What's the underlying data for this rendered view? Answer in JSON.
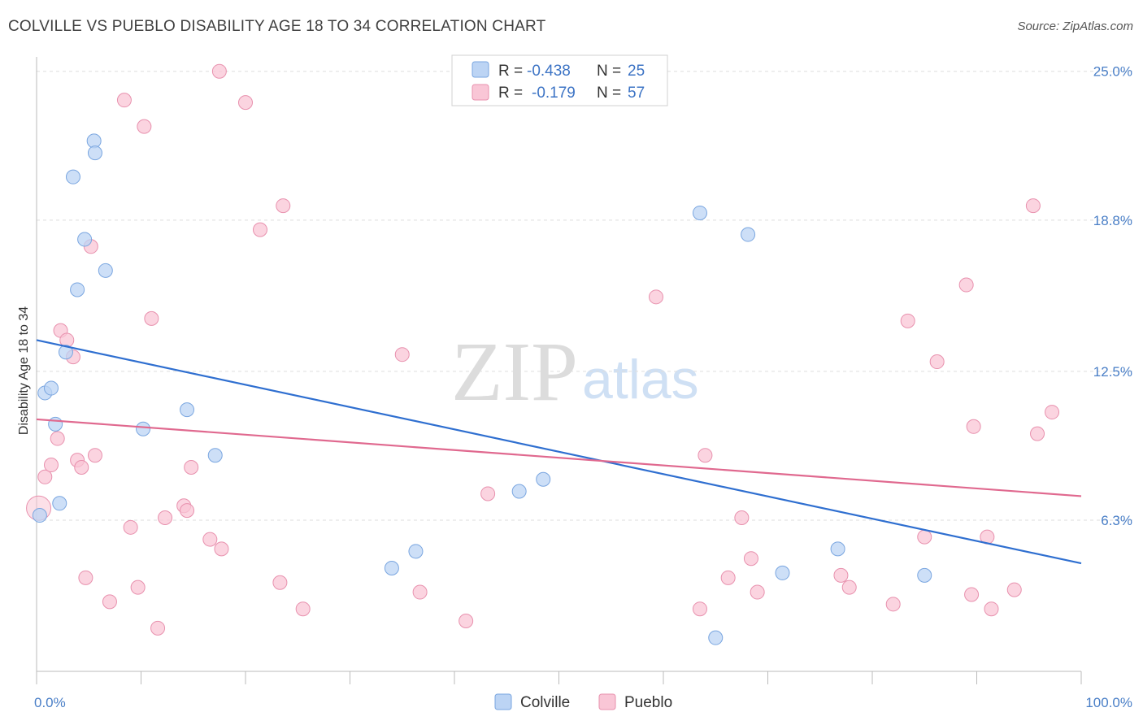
{
  "header": {
    "title": "COLVILLE VS PUEBLO DISABILITY AGE 18 TO 34 CORRELATION CHART",
    "source": "Source: ZipAtlas.com"
  },
  "watermark": {
    "zip": "ZIP",
    "atlas": "atlas"
  },
  "colors": {
    "colville_fill": "#bcd4f4",
    "colville_stroke": "#7aa6e0",
    "colville_line": "#2f6fd0",
    "pueblo_fill": "#f9c6d6",
    "pueblo_stroke": "#e891ae",
    "pueblo_line": "#e0698f",
    "tick_label": "#4a7fc7",
    "grid": "#dddddd"
  },
  "legend": {
    "rows": [
      {
        "r_label": "R =",
        "r_value": "-0.438",
        "n_label": "N =",
        "n_value": "25"
      },
      {
        "r_label": "R =",
        "r_value": "-0.179",
        "n_label": "N =",
        "n_value": "57"
      }
    ]
  },
  "chart_data": {
    "type": "scatter",
    "title": "COLVILLE VS PUEBLO DISABILITY AGE 18 TO 34 CORRELATION CHART",
    "xlabel": "",
    "ylabel": "Disability Age 18 to 34",
    "xlim": [
      0,
      100
    ],
    "ylim": [
      0,
      25.6
    ],
    "x_ticks": [
      "0.0%",
      "100.0%"
    ],
    "y_ticks": [
      {
        "value": 6.3,
        "label": "6.3%"
      },
      {
        "value": 12.5,
        "label": "12.5%"
      },
      {
        "value": 18.8,
        "label": "18.8%"
      },
      {
        "value": 25.0,
        "label": "25.0%"
      }
    ],
    "grid": "horizontal dashed",
    "legend_position": "top-center",
    "series": [
      {
        "name": "Colville",
        "r": -0.438,
        "n": 25,
        "trend": {
          "x": [
            0,
            100
          ],
          "y": [
            13.8,
            4.5
          ]
        },
        "points": [
          {
            "x": 0.3,
            "y": 6.5
          },
          {
            "x": 0.8,
            "y": 11.6
          },
          {
            "x": 1.4,
            "y": 11.8
          },
          {
            "x": 1.8,
            "y": 10.3
          },
          {
            "x": 2.2,
            "y": 7.0
          },
          {
            "x": 2.8,
            "y": 13.3
          },
          {
            "x": 3.5,
            "y": 20.6
          },
          {
            "x": 3.9,
            "y": 15.9
          },
          {
            "x": 4.6,
            "y": 18.0
          },
          {
            "x": 5.5,
            "y": 22.1
          },
          {
            "x": 5.6,
            "y": 21.6
          },
          {
            "x": 6.6,
            "y": 16.7
          },
          {
            "x": 10.2,
            "y": 10.1
          },
          {
            "x": 14.4,
            "y": 10.9
          },
          {
            "x": 17.1,
            "y": 9.0
          },
          {
            "x": 34.0,
            "y": 4.3
          },
          {
            "x": 36.3,
            "y": 5.0
          },
          {
            "x": 46.2,
            "y": 7.5
          },
          {
            "x": 48.5,
            "y": 8.0
          },
          {
            "x": 63.5,
            "y": 19.1
          },
          {
            "x": 65.0,
            "y": 1.4
          },
          {
            "x": 68.1,
            "y": 18.2
          },
          {
            "x": 71.4,
            "y": 4.1
          },
          {
            "x": 76.7,
            "y": 5.1
          },
          {
            "x": 85.0,
            "y": 4.0
          }
        ]
      },
      {
        "name": "Pueblo",
        "r": -0.179,
        "n": 57,
        "trend": {
          "x": [
            0,
            100
          ],
          "y": [
            10.5,
            7.3
          ]
        },
        "points": [
          {
            "x": 0.2,
            "y": 6.8,
            "big": true
          },
          {
            "x": 0.8,
            "y": 8.1
          },
          {
            "x": 1.4,
            "y": 8.6
          },
          {
            "x": 2.0,
            "y": 9.7
          },
          {
            "x": 2.3,
            "y": 14.2
          },
          {
            "x": 2.9,
            "y": 13.8
          },
          {
            "x": 3.5,
            "y": 13.1
          },
          {
            "x": 3.9,
            "y": 8.8
          },
          {
            "x": 4.3,
            "y": 8.5
          },
          {
            "x": 4.7,
            "y": 3.9
          },
          {
            "x": 5.2,
            "y": 17.7
          },
          {
            "x": 5.6,
            "y": 9.0
          },
          {
            "x": 7.0,
            "y": 2.9
          },
          {
            "x": 8.4,
            "y": 23.8
          },
          {
            "x": 9.0,
            "y": 6.0
          },
          {
            "x": 9.7,
            "y": 3.5
          },
          {
            "x": 10.3,
            "y": 22.7
          },
          {
            "x": 11.0,
            "y": 14.7
          },
          {
            "x": 11.6,
            "y": 1.8
          },
          {
            "x": 12.3,
            "y": 6.4
          },
          {
            "x": 14.1,
            "y": 6.9
          },
          {
            "x": 14.4,
            "y": 6.7
          },
          {
            "x": 14.8,
            "y": 8.5
          },
          {
            "x": 16.6,
            "y": 5.5
          },
          {
            "x": 17.7,
            "y": 5.1
          },
          {
            "x": 17.5,
            "y": 25.0
          },
          {
            "x": 20.0,
            "y": 23.7
          },
          {
            "x": 21.4,
            "y": 18.4
          },
          {
            "x": 23.3,
            "y": 3.7
          },
          {
            "x": 23.6,
            "y": 19.4
          },
          {
            "x": 25.5,
            "y": 2.6
          },
          {
            "x": 35.0,
            "y": 13.2
          },
          {
            "x": 36.7,
            "y": 3.3
          },
          {
            "x": 41.1,
            "y": 2.1
          },
          {
            "x": 43.2,
            "y": 7.4
          },
          {
            "x": 59.3,
            "y": 15.6
          },
          {
            "x": 63.5,
            "y": 2.6
          },
          {
            "x": 64.0,
            "y": 9.0
          },
          {
            "x": 66.2,
            "y": 3.9
          },
          {
            "x": 67.5,
            "y": 6.4
          },
          {
            "x": 68.4,
            "y": 4.7
          },
          {
            "x": 69.0,
            "y": 3.3
          },
          {
            "x": 77.0,
            "y": 4.0
          },
          {
            "x": 77.8,
            "y": 3.5
          },
          {
            "x": 82.0,
            "y": 2.8
          },
          {
            "x": 83.4,
            "y": 14.6
          },
          {
            "x": 85.0,
            "y": 5.6
          },
          {
            "x": 86.2,
            "y": 12.9
          },
          {
            "x": 89.0,
            "y": 16.1
          },
          {
            "x": 89.7,
            "y": 10.2
          },
          {
            "x": 89.5,
            "y": 3.2
          },
          {
            "x": 91.0,
            "y": 5.6
          },
          {
            "x": 91.4,
            "y": 2.6
          },
          {
            "x": 93.6,
            "y": 3.4
          },
          {
            "x": 95.4,
            "y": 19.4
          },
          {
            "x": 95.8,
            "y": 9.9
          },
          {
            "x": 97.2,
            "y": 10.8
          }
        ]
      }
    ]
  }
}
